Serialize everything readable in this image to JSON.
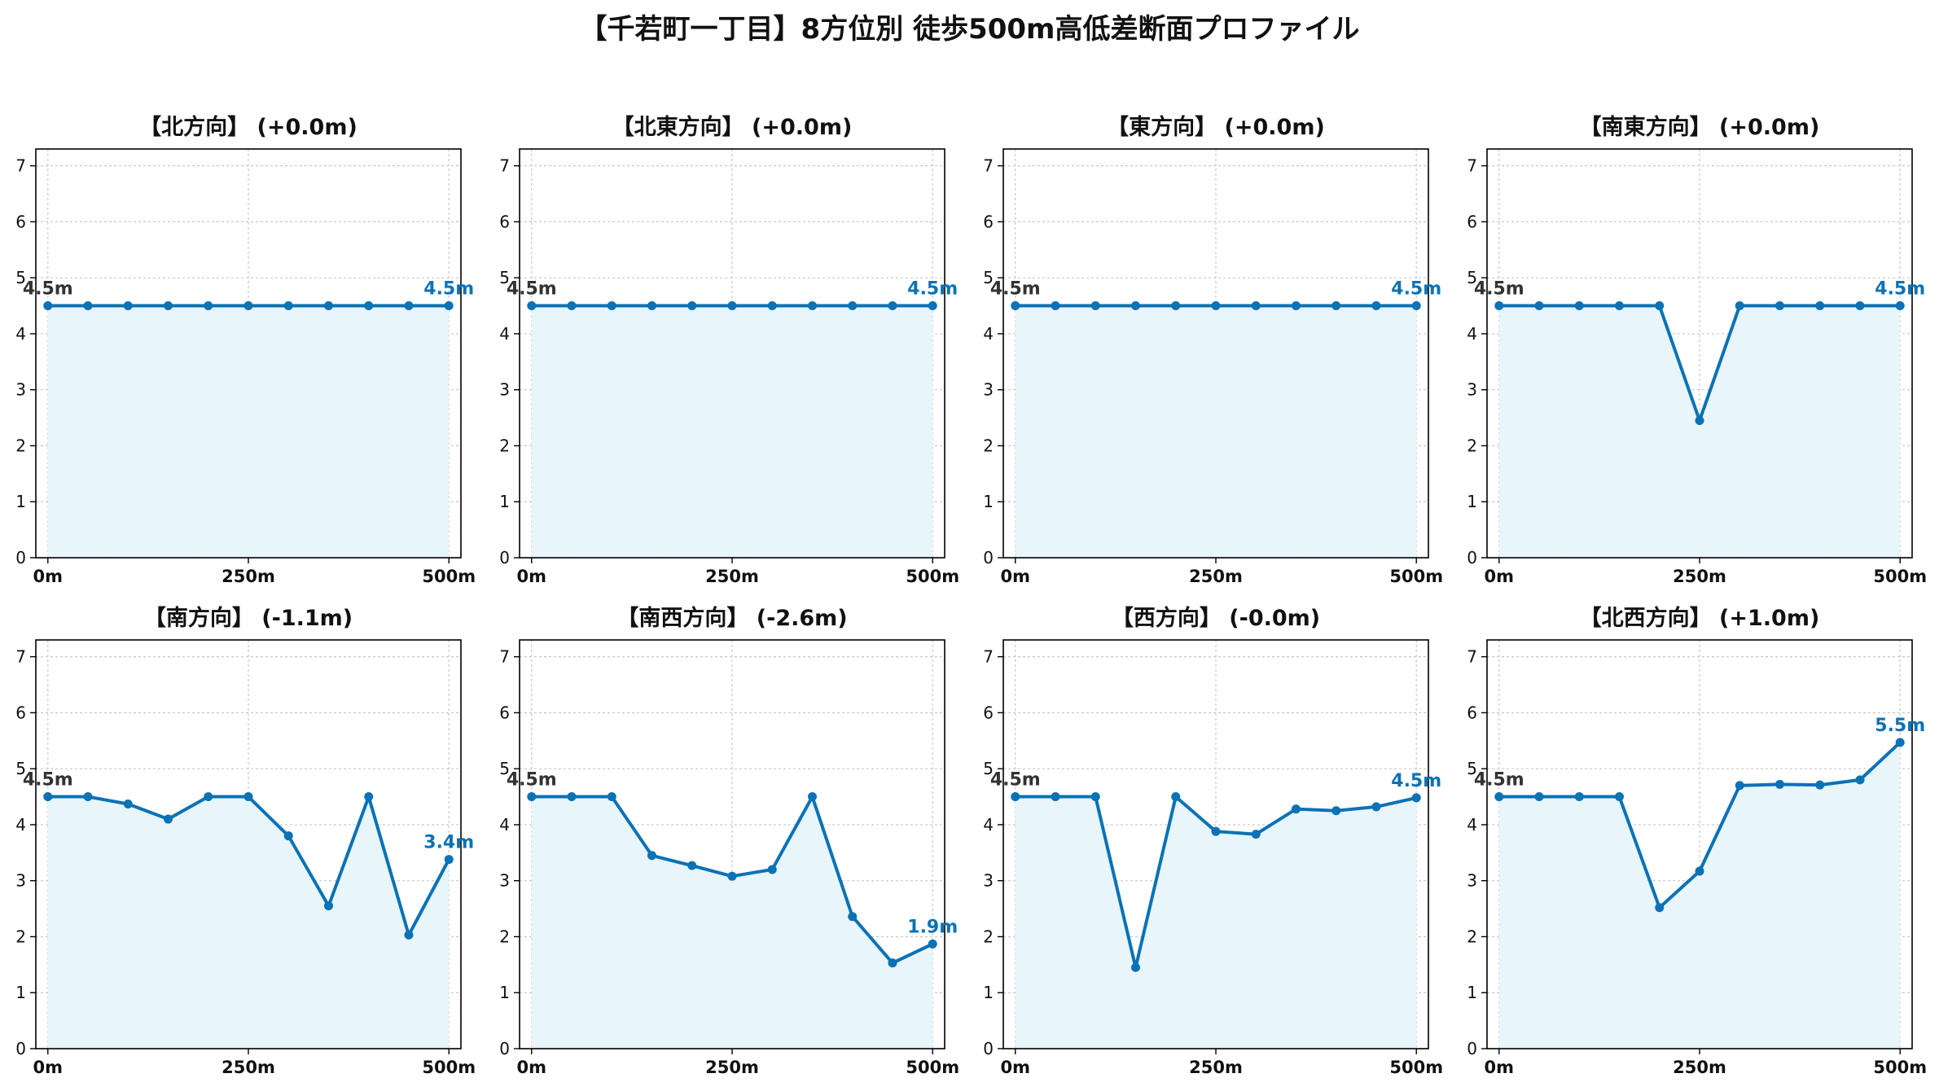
{
  "title": "【千若町一丁目】8方位別 徒歩500m高低差断面プロファイル",
  "colors": {
    "line": "#0a72b5",
    "fill": "#e8f5fb",
    "start_label": "#333333",
    "end_label": "#0a72b5",
    "grid": "#c8c8c8"
  },
  "chart_data": [
    {
      "type": "area",
      "title": "【北方向】 (+0.0m)",
      "x": [
        0,
        50,
        100,
        150,
        200,
        250,
        300,
        350,
        400,
        450,
        500
      ],
      "y": [
        4.5,
        4.5,
        4.5,
        4.5,
        4.5,
        4.5,
        4.5,
        4.5,
        4.5,
        4.5,
        4.5
      ],
      "xticks": [
        "0m",
        "250m",
        "500m"
      ],
      "yticks": [
        "0",
        "1",
        "2",
        "3",
        "4",
        "5",
        "6",
        "7"
      ],
      "ylim": [
        0,
        7.3
      ],
      "start_label": "4.5m",
      "end_label": "4.5m",
      "grid": true
    },
    {
      "type": "area",
      "title": "【北東方向】 (+0.0m)",
      "x": [
        0,
        50,
        100,
        150,
        200,
        250,
        300,
        350,
        400,
        450,
        500
      ],
      "y": [
        4.5,
        4.5,
        4.5,
        4.5,
        4.5,
        4.5,
        4.5,
        4.5,
        4.5,
        4.5,
        4.5
      ],
      "xticks": [
        "0m",
        "250m",
        "500m"
      ],
      "yticks": [
        "0",
        "1",
        "2",
        "3",
        "4",
        "5",
        "6",
        "7"
      ],
      "ylim": [
        0,
        7.3
      ],
      "start_label": "4.5m",
      "end_label": "4.5m",
      "grid": true
    },
    {
      "type": "area",
      "title": "【東方向】 (+0.0m)",
      "x": [
        0,
        50,
        100,
        150,
        200,
        250,
        300,
        350,
        400,
        450,
        500
      ],
      "y": [
        4.5,
        4.5,
        4.5,
        4.5,
        4.5,
        4.5,
        4.5,
        4.5,
        4.5,
        4.5,
        4.5
      ],
      "xticks": [
        "0m",
        "250m",
        "500m"
      ],
      "yticks": [
        "0",
        "1",
        "2",
        "3",
        "4",
        "5",
        "6",
        "7"
      ],
      "ylim": [
        0,
        7.3
      ],
      "start_label": "4.5m",
      "end_label": "4.5m",
      "grid": true
    },
    {
      "type": "area",
      "title": "【南東方向】 (+0.0m)",
      "x": [
        0,
        50,
        100,
        150,
        200,
        250,
        300,
        350,
        400,
        450,
        500
      ],
      "y": [
        4.5,
        4.5,
        4.5,
        4.5,
        4.5,
        2.45,
        4.5,
        4.5,
        4.5,
        4.5,
        4.5
      ],
      "xticks": [
        "0m",
        "250m",
        "500m"
      ],
      "yticks": [
        "0",
        "1",
        "2",
        "3",
        "4",
        "5",
        "6",
        "7"
      ],
      "ylim": [
        0,
        7.3
      ],
      "start_label": "4.5m",
      "end_label": "4.5m",
      "grid": true
    },
    {
      "type": "area",
      "title": "【南方向】 (-1.1m)",
      "x": [
        0,
        50,
        100,
        150,
        200,
        250,
        300,
        350,
        400,
        450,
        500
      ],
      "y": [
        4.5,
        4.5,
        4.37,
        4.1,
        4.5,
        4.5,
        3.8,
        2.55,
        4.5,
        2.03,
        3.38
      ],
      "xticks": [
        "0m",
        "250m",
        "500m"
      ],
      "yticks": [
        "0",
        "1",
        "2",
        "3",
        "4",
        "5",
        "6",
        "7"
      ],
      "ylim": [
        0,
        7.3
      ],
      "start_label": "4.5m",
      "end_label": "3.4m",
      "grid": true
    },
    {
      "type": "area",
      "title": "【南西方向】 (-2.6m)",
      "x": [
        0,
        50,
        100,
        150,
        200,
        250,
        300,
        350,
        400,
        450,
        500
      ],
      "y": [
        4.5,
        4.5,
        4.5,
        3.45,
        3.27,
        3.08,
        3.2,
        4.5,
        2.36,
        1.53,
        1.87
      ],
      "xticks": [
        "0m",
        "250m",
        "500m"
      ],
      "yticks": [
        "0",
        "1",
        "2",
        "3",
        "4",
        "5",
        "6",
        "7"
      ],
      "ylim": [
        0,
        7.3
      ],
      "start_label": "4.5m",
      "end_label": "1.9m",
      "grid": true
    },
    {
      "type": "area",
      "title": "【西方向】 (-0.0m)",
      "x": [
        0,
        50,
        100,
        150,
        200,
        250,
        300,
        350,
        400,
        450,
        500
      ],
      "y": [
        4.5,
        4.5,
        4.5,
        1.45,
        4.5,
        3.88,
        3.83,
        4.28,
        4.25,
        4.32,
        4.48
      ],
      "xticks": [
        "0m",
        "250m",
        "500m"
      ],
      "yticks": [
        "0",
        "1",
        "2",
        "3",
        "4",
        "5",
        "6",
        "7"
      ],
      "ylim": [
        0,
        7.3
      ],
      "start_label": "4.5m",
      "end_label": "4.5m",
      "grid": true
    },
    {
      "type": "area",
      "title": "【北西方向】 (+1.0m)",
      "x": [
        0,
        50,
        100,
        150,
        200,
        250,
        300,
        350,
        400,
        450,
        500
      ],
      "y": [
        4.5,
        4.5,
        4.5,
        4.5,
        2.52,
        3.17,
        4.7,
        4.72,
        4.71,
        4.8,
        5.47
      ],
      "xticks": [
        "0m",
        "250m",
        "500m"
      ],
      "yticks": [
        "0",
        "1",
        "2",
        "3",
        "4",
        "5",
        "6",
        "7"
      ],
      "ylim": [
        0,
        7.3
      ],
      "start_label": "4.5m",
      "end_label": "5.5m",
      "grid": true
    }
  ]
}
